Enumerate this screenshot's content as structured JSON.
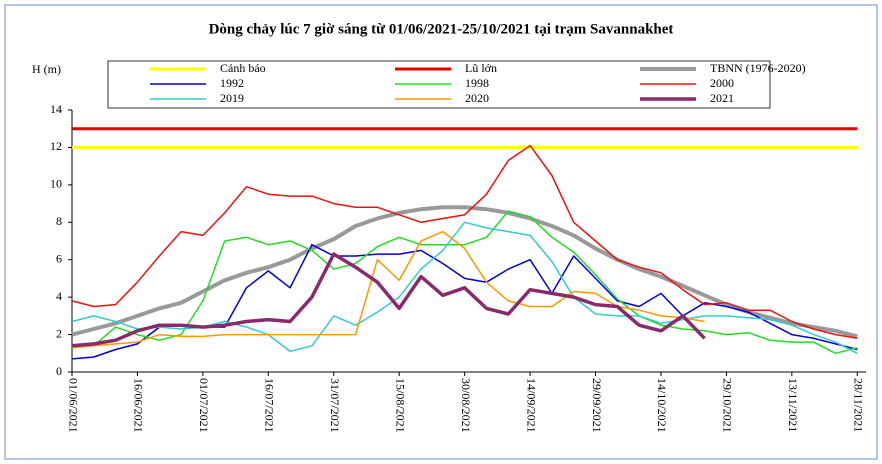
{
  "chart_data": {
    "type": "line",
    "title": "Dòng chảy lúc 7 giờ sáng từ 01/06/2021-25/10/2021 tại trạm Savannakhet",
    "y_label": "H (m)",
    "legend": "top",
    "grid": false,
    "x": [
      "01/06/2021",
      "06/06/2021",
      "11/06/2021",
      "16/06/2021",
      "21/06/2021",
      "26/06/2021",
      "01/07/2021",
      "06/07/2021",
      "11/07/2021",
      "16/07/2021",
      "21/07/2021",
      "26/07/2021",
      "31/07/2021",
      "05/08/2021",
      "10/08/2021",
      "15/08/2021",
      "20/08/2021",
      "25/08/2021",
      "30/08/2021",
      "04/09/2021",
      "09/09/2021",
      "14/09/2021",
      "19/09/2021",
      "24/09/2021",
      "29/09/2021",
      "04/10/2021",
      "09/10/2021",
      "14/10/2021",
      "19/10/2021",
      "24/10/2021",
      "29/10/2021",
      "03/11/2021",
      "08/11/2021",
      "13/11/2021",
      "18/11/2021",
      "23/11/2021",
      "28/11/2021"
    ],
    "xlim": [
      "01/06/2021",
      "30/11/2021"
    ],
    "xticks": [
      "01/06/2021",
      "16/06/2021",
      "01/07/2021",
      "16/07/2021",
      "31/07/2021",
      "15/08/2021",
      "30/08/2021",
      "14/09/2021",
      "29/09/2021",
      "14/10/2021",
      "29/10/2021",
      "13/11/2021",
      "28/11/2021"
    ],
    "ylim": [
      0,
      14
    ],
    "yticks": [
      0,
      2,
      4,
      6,
      8,
      10,
      12,
      14
    ],
    "series": [
      {
        "name": "Cảnh báo",
        "color": "#ffff00",
        "width": 3,
        "values": [
          12,
          12,
          12,
          12,
          12,
          12,
          12,
          12,
          12,
          12,
          12,
          12,
          12,
          12,
          12,
          12,
          12,
          12,
          12,
          12,
          12,
          12,
          12,
          12,
          12,
          12,
          12,
          12,
          12,
          12,
          12,
          12,
          12,
          12,
          12,
          12,
          12
        ]
      },
      {
        "name": "Lũ lớn",
        "color": "#e00000",
        "width": 3,
        "values": [
          13,
          13,
          13,
          13,
          13,
          13,
          13,
          13,
          13,
          13,
          13,
          13,
          13,
          13,
          13,
          13,
          13,
          13,
          13,
          13,
          13,
          13,
          13,
          13,
          13,
          13,
          13,
          13,
          13,
          13,
          13,
          13,
          13,
          13,
          13,
          13,
          13
        ]
      },
      {
        "name": "TBNN (1976-2020)",
        "color": "#999999",
        "width": 4,
        "values": [
          2.0,
          2.3,
          2.6,
          3.0,
          3.4,
          3.7,
          4.3,
          4.9,
          5.3,
          5.6,
          6.0,
          6.6,
          7.1,
          7.8,
          8.2,
          8.5,
          8.7,
          8.8,
          8.8,
          8.7,
          8.5,
          8.2,
          7.8,
          7.3,
          6.6,
          6.0,
          5.5,
          5.1,
          4.6,
          4.1,
          3.6,
          3.2,
          2.9,
          2.6,
          2.4,
          2.2,
          1.9
        ]
      },
      {
        "name": "1992",
        "color": "#0000dd",
        "width": 1.5,
        "values": [
          0.7,
          0.8,
          1.2,
          1.5,
          2.4,
          2.5,
          2.4,
          2.4,
          4.5,
          5.4,
          4.5,
          6.8,
          6.2,
          6.2,
          6.3,
          6.3,
          6.5,
          5.8,
          5.0,
          4.8,
          5.5,
          6.0,
          4.2,
          6.2,
          5.0,
          3.8,
          3.5,
          4.2,
          3.0,
          3.7,
          3.5,
          3.2,
          2.6,
          2.0,
          1.8,
          1.5,
          1.2
        ]
      },
      {
        "name": "1998",
        "color": "#22dd22",
        "width": 1.5,
        "values": [
          1.4,
          1.4,
          2.4,
          2.0,
          1.7,
          2.0,
          3.8,
          7.0,
          7.2,
          6.8,
          7.0,
          6.5,
          5.5,
          5.8,
          6.7,
          7.2,
          6.8,
          6.8,
          6.8,
          7.2,
          8.6,
          8.3,
          7.2,
          6.4,
          5.2,
          3.9,
          3.0,
          2.5,
          2.3,
          2.2,
          2.0,
          2.1,
          1.7,
          1.6,
          1.6,
          1.0,
          1.3
        ]
      },
      {
        "name": "2000",
        "color": "#ee1111",
        "width": 1.5,
        "values": [
          3.8,
          3.5,
          3.6,
          4.8,
          6.2,
          7.5,
          7.3,
          8.5,
          9.9,
          9.5,
          9.4,
          9.4,
          9.0,
          8.8,
          8.8,
          8.4,
          8.0,
          8.2,
          8.4,
          9.5,
          11.3,
          12.1,
          10.5,
          8.0,
          7.0,
          6.0,
          5.6,
          5.3,
          4.4,
          3.6,
          3.7,
          3.3,
          3.3,
          2.7,
          2.3,
          2.0,
          1.8
        ]
      },
      {
        "name": "2019",
        "color": "#33cccc",
        "width": 1.5,
        "values": [
          2.7,
          3.0,
          2.7,
          2.3,
          2.4,
          2.3,
          2.4,
          2.7,
          2.4,
          2.0,
          1.1,
          1.4,
          3.0,
          2.5,
          3.2,
          4.0,
          5.5,
          6.5,
          8.0,
          7.7,
          7.5,
          7.3,
          5.9,
          4.0,
          3.1,
          3.0,
          3.0,
          2.6,
          2.8,
          3.0,
          3.0,
          2.9,
          2.8,
          2.5,
          2.0,
          1.6,
          1.0
        ]
      },
      {
        "name": "2020",
        "color": "#ff9900",
        "width": 1.5,
        "values": [
          1.3,
          1.4,
          1.5,
          1.6,
          2.0,
          1.9,
          1.9,
          2.0,
          2.0,
          2.0,
          2.0,
          2.0,
          2.0,
          2.0,
          6.0,
          4.9,
          7.0,
          7.5,
          6.6,
          4.8,
          3.8,
          3.5,
          3.5,
          4.3,
          4.2,
          3.5,
          3.3,
          3.0,
          2.9,
          2.7,
          null,
          null,
          null,
          null,
          null,
          null,
          null
        ]
      },
      {
        "name": "2021",
        "color": "#8b2a6b",
        "width": 3.5,
        "values": [
          1.4,
          1.5,
          1.7,
          2.2,
          2.5,
          2.5,
          2.4,
          2.5,
          2.7,
          2.8,
          2.7,
          4.0,
          6.3,
          5.6,
          4.8,
          3.4,
          5.1,
          4.1,
          4.5,
          3.4,
          3.1,
          4.4,
          4.2,
          4.0,
          3.6,
          3.5,
          2.5,
          2.2,
          3.0,
          1.8,
          null,
          null,
          null,
          null,
          null,
          null,
          null
        ]
      }
    ]
  }
}
